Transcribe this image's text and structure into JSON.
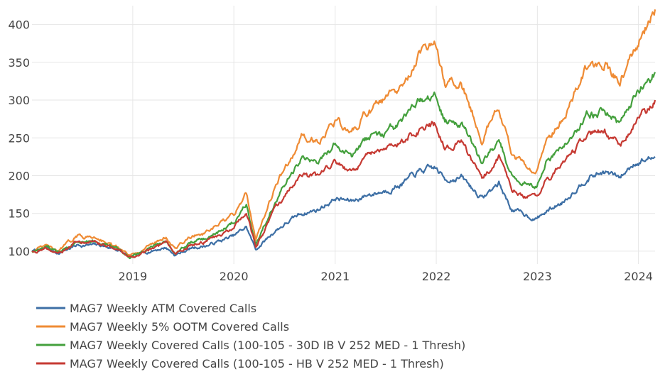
{
  "chart_data": {
    "type": "line",
    "title": "",
    "xlabel": "",
    "ylabel": "",
    "xlim": [
      "2018-01-02",
      "2024-03-01"
    ],
    "ylim": [
      83,
      425
    ],
    "grid": true,
    "legend_position": "bottom-left",
    "x_tick_labels": [
      "2019",
      "2020",
      "2021",
      "2022",
      "2023",
      "2024"
    ],
    "y_tick_labels": [
      "100",
      "150",
      "200",
      "250",
      "300",
      "350",
      "400"
    ],
    "x_ticks": [
      "2019-01-01",
      "2020-01-01",
      "2021-01-01",
      "2022-01-01",
      "2023-01-01",
      "2024-01-01"
    ],
    "y_ticks": [
      100,
      150,
      200,
      250,
      300,
      350,
      400
    ],
    "series": [
      {
        "name": "MAG7 Weekly ATM Covered Calls",
        "color": "#3d6fa5",
        "points": [
          [
            "2018-01-02",
            100
          ],
          [
            "2018-03-01",
            104
          ],
          [
            "2018-04-01",
            97
          ],
          [
            "2018-06-15",
            108
          ],
          [
            "2018-09-01",
            108
          ],
          [
            "2018-11-01",
            103
          ],
          [
            "2018-12-24",
            92
          ],
          [
            "2019-03-01",
            100
          ],
          [
            "2019-05-01",
            105
          ],
          [
            "2019-06-03",
            95
          ],
          [
            "2019-08-01",
            104
          ],
          [
            "2019-10-01",
            108
          ],
          [
            "2020-01-01",
            120
          ],
          [
            "2020-02-15",
            132
          ],
          [
            "2020-03-20",
            102
          ],
          [
            "2020-06-01",
            128
          ],
          [
            "2020-09-01",
            150
          ],
          [
            "2020-11-01",
            155
          ],
          [
            "2021-01-01",
            170
          ],
          [
            "2021-03-01",
            166
          ],
          [
            "2021-05-01",
            175
          ],
          [
            "2021-07-01",
            180
          ],
          [
            "2021-09-01",
            190
          ],
          [
            "2021-11-01",
            205
          ],
          [
            "2021-12-28",
            210
          ],
          [
            "2022-02-01",
            195
          ],
          [
            "2022-04-01",
            198
          ],
          [
            "2022-06-15",
            170
          ],
          [
            "2022-08-15",
            190
          ],
          [
            "2022-10-01",
            155
          ],
          [
            "2022-12-28",
            143
          ],
          [
            "2023-02-01",
            152
          ],
          [
            "2023-04-01",
            165
          ],
          [
            "2023-07-01",
            198
          ],
          [
            "2023-09-01",
            205
          ],
          [
            "2023-10-26",
            197
          ],
          [
            "2023-12-20",
            218
          ],
          [
            "2024-03-01",
            225
          ]
        ]
      },
      {
        "name": "MAG7 Weekly 5% OOTM Covered Calls",
        "color": "#ef8b34",
        "points": [
          [
            "2018-01-02",
            100
          ],
          [
            "2018-03-01",
            107
          ],
          [
            "2018-04-01",
            99
          ],
          [
            "2018-06-15",
            120
          ],
          [
            "2018-09-01",
            118
          ],
          [
            "2018-11-01",
            105
          ],
          [
            "2018-12-24",
            93
          ],
          [
            "2019-03-01",
            108
          ],
          [
            "2019-05-01",
            119
          ],
          [
            "2019-06-03",
            103
          ],
          [
            "2019-08-01",
            120
          ],
          [
            "2019-10-01",
            125
          ],
          [
            "2020-01-01",
            148
          ],
          [
            "2020-02-15",
            178
          ],
          [
            "2020-03-20",
            117
          ],
          [
            "2020-06-01",
            188
          ],
          [
            "2020-09-01",
            250
          ],
          [
            "2020-11-01",
            248
          ],
          [
            "2021-01-01",
            272
          ],
          [
            "2021-03-01",
            255
          ],
          [
            "2021-05-01",
            285
          ],
          [
            "2021-07-01",
            300
          ],
          [
            "2021-09-01",
            315
          ],
          [
            "2021-11-01",
            360
          ],
          [
            "2021-12-28",
            372
          ],
          [
            "2022-02-01",
            320
          ],
          [
            "2022-04-01",
            325
          ],
          [
            "2022-06-15",
            250
          ],
          [
            "2022-08-15",
            290
          ],
          [
            "2022-10-01",
            225
          ],
          [
            "2022-12-28",
            205
          ],
          [
            "2023-02-01",
            245
          ],
          [
            "2023-04-01",
            275
          ],
          [
            "2023-07-01",
            345
          ],
          [
            "2023-09-01",
            350
          ],
          [
            "2023-10-26",
            325
          ],
          [
            "2023-12-20",
            370
          ],
          [
            "2024-03-01",
            420
          ]
        ]
      },
      {
        "name": "MAG7 Weekly Covered Calls (100-105 - 30D IB V 252 MED - 1 Thresh)",
        "color": "#44a03d",
        "points": [
          [
            "2018-01-02",
            100
          ],
          [
            "2018-03-01",
            105
          ],
          [
            "2018-04-01",
            98
          ],
          [
            "2018-06-15",
            115
          ],
          [
            "2018-09-01",
            113
          ],
          [
            "2018-11-01",
            104
          ],
          [
            "2018-12-24",
            92
          ],
          [
            "2019-03-01",
            104
          ],
          [
            "2019-05-01",
            113
          ],
          [
            "2019-06-03",
            98
          ],
          [
            "2019-08-01",
            112
          ],
          [
            "2019-10-01",
            117
          ],
          [
            "2020-01-01",
            138
          ],
          [
            "2020-02-15",
            165
          ],
          [
            "2020-03-20",
            110
          ],
          [
            "2020-06-01",
            168
          ],
          [
            "2020-09-01",
            222
          ],
          [
            "2020-11-01",
            218
          ],
          [
            "2021-01-01",
            240
          ],
          [
            "2021-03-01",
            225
          ],
          [
            "2021-05-01",
            250
          ],
          [
            "2021-07-01",
            255
          ],
          [
            "2021-09-01",
            270
          ],
          [
            "2021-11-01",
            298
          ],
          [
            "2021-12-28",
            305
          ],
          [
            "2022-02-01",
            270
          ],
          [
            "2022-04-01",
            275
          ],
          [
            "2022-06-15",
            215
          ],
          [
            "2022-08-15",
            245
          ],
          [
            "2022-10-01",
            200
          ],
          [
            "2022-12-28",
            185
          ],
          [
            "2023-02-01",
            215
          ],
          [
            "2023-04-01",
            235
          ],
          [
            "2023-07-01",
            282
          ],
          [
            "2023-09-01",
            285
          ],
          [
            "2023-10-26",
            268
          ],
          [
            "2023-12-20",
            305
          ],
          [
            "2024-03-01",
            337
          ]
        ]
      },
      {
        "name": "MAG7 Weekly Covered Calls (100-105 - HB V 252 MED - 1 Thresh)",
        "color": "#c63a33",
        "points": [
          [
            "2018-01-02",
            100
          ],
          [
            "2018-03-01",
            104
          ],
          [
            "2018-04-01",
            97
          ],
          [
            "2018-06-15",
            112
          ],
          [
            "2018-09-01",
            110
          ],
          [
            "2018-11-01",
            103
          ],
          [
            "2018-12-24",
            91
          ],
          [
            "2019-03-01",
            102
          ],
          [
            "2019-05-01",
            109
          ],
          [
            "2019-06-03",
            95
          ],
          [
            "2019-08-01",
            108
          ],
          [
            "2019-10-01",
            114
          ],
          [
            "2020-01-01",
            130
          ],
          [
            "2020-02-15",
            152
          ],
          [
            "2020-03-20",
            105
          ],
          [
            "2020-06-01",
            158
          ],
          [
            "2020-09-01",
            200
          ],
          [
            "2020-11-01",
            198
          ],
          [
            "2021-01-01",
            218
          ],
          [
            "2021-03-01",
            205
          ],
          [
            "2021-05-01",
            225
          ],
          [
            "2021-07-01",
            232
          ],
          [
            "2021-09-01",
            245
          ],
          [
            "2021-11-01",
            262
          ],
          [
            "2021-12-28",
            268
          ],
          [
            "2022-02-01",
            240
          ],
          [
            "2022-04-01",
            245
          ],
          [
            "2022-06-15",
            195
          ],
          [
            "2022-08-15",
            225
          ],
          [
            "2022-10-01",
            182
          ],
          [
            "2022-12-28",
            168
          ],
          [
            "2023-02-01",
            195
          ],
          [
            "2023-04-01",
            212
          ],
          [
            "2023-07-01",
            252
          ],
          [
            "2023-09-01",
            258
          ],
          [
            "2023-10-26",
            242
          ],
          [
            "2023-12-20",
            272
          ],
          [
            "2024-03-01",
            300
          ]
        ]
      }
    ]
  }
}
